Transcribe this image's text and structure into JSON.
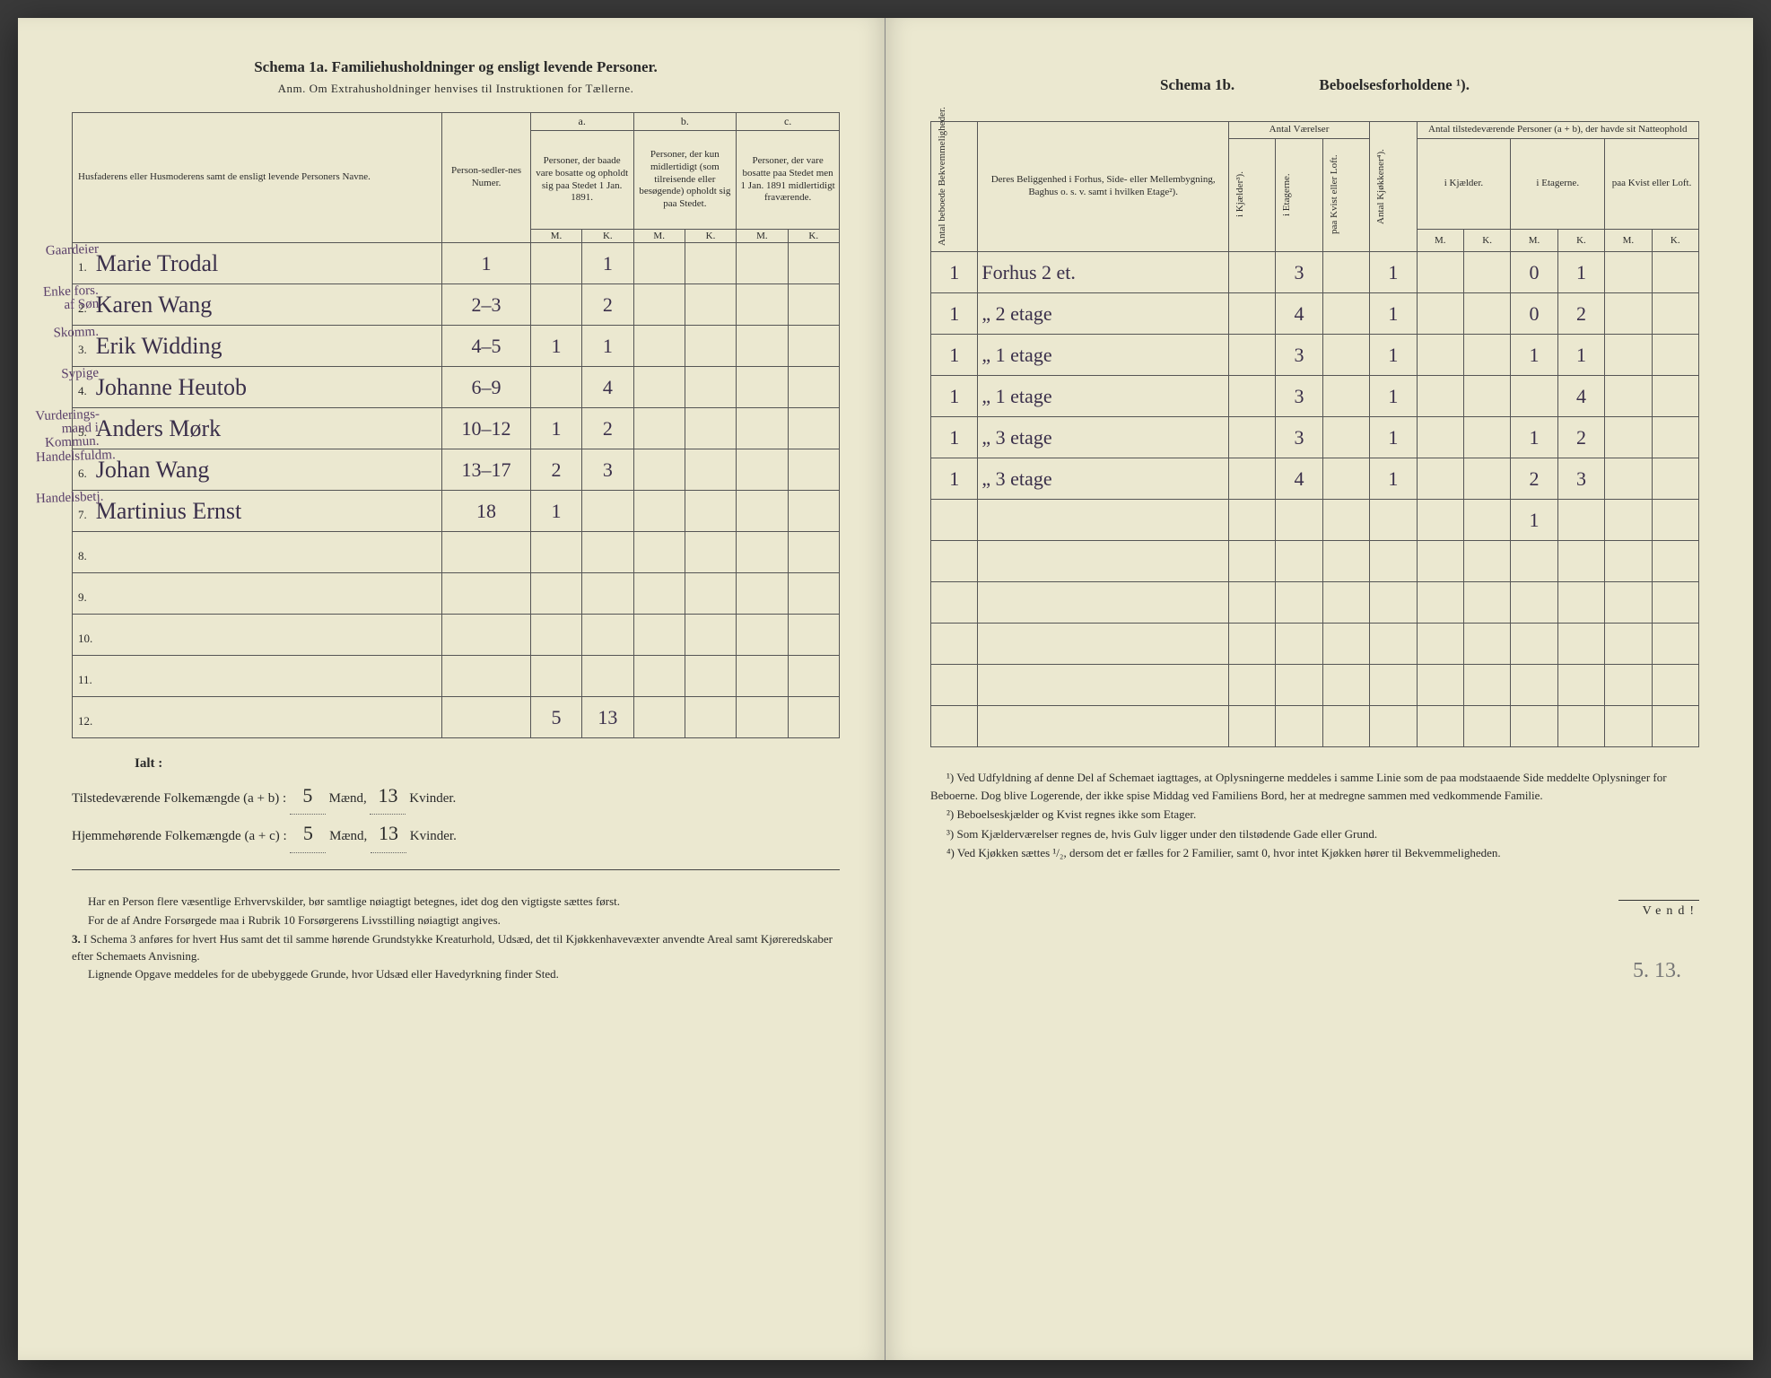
{
  "left": {
    "schema_title": "Schema 1a.  Familiehusholdninger og ensligt levende Personer.",
    "anm": "Anm.  Om Extrahusholdninger henvises til Instruktionen for Tællerne.",
    "headers": {
      "name": "Husfaderens eller Husmoderens samt de ensligt levende Personers Navne.",
      "person_num": "Person-sedler-nes Numer.",
      "a_label": "a.",
      "a_text": "Personer, der baade vare bosatte og opholdt sig paa Stedet 1 Jan. 1891.",
      "b_label": "b.",
      "b_text": "Personer, der kun midlertidigt (som tilreisende eller besøgende) opholdt sig paa Stedet.",
      "c_label": "c.",
      "c_text": "Personer, der vare bosatte paa Stedet men 1 Jan. 1891 midlertidigt fraværende.",
      "m": "M.",
      "k": "K."
    },
    "rows": [
      {
        "n": "1.",
        "margin": "Gaardeier",
        "name": "Marie Trodal",
        "num": "1",
        "aM": "",
        "aK": "1",
        "bM": "",
        "bK": ""
      },
      {
        "n": "2.",
        "margin": "Enke fors. af Søn",
        "name": "Karen Wang",
        "num": "2–3",
        "aM": "",
        "aK": "2",
        "bM": "",
        "bK": ""
      },
      {
        "n": "3.",
        "margin": "Skomm.",
        "name": "Erik Widding",
        "num": "4–5",
        "aM": "1",
        "aK": "1",
        "bM": "",
        "bK": ""
      },
      {
        "n": "4.",
        "margin": "Sypige",
        "name": "Johanne Heutob",
        "num": "6–9",
        "aM": "",
        "aK": "4",
        "bM": "",
        "bK": ""
      },
      {
        "n": "5.",
        "margin": "Vurderings-mand i Kommun.",
        "name": "Anders Mørk",
        "num": "10–12",
        "aM": "1",
        "aK": "2",
        "bM": "",
        "bK": ""
      },
      {
        "n": "6.",
        "margin": "Handelsfuldm.",
        "name": "Johan Wang",
        "num": "13–17",
        "aM": "2",
        "aK": "3",
        "bM": "",
        "bK": ""
      },
      {
        "n": "7.",
        "margin": "Handelsbetj.",
        "name": "Martinius Ernst",
        "num": "18",
        "aM": "1",
        "aK": "",
        "bM": "",
        "bK": ""
      },
      {
        "n": "8.",
        "margin": "",
        "name": "",
        "num": "",
        "aM": "",
        "aK": "",
        "bM": "",
        "bK": ""
      },
      {
        "n": "9.",
        "margin": "",
        "name": "",
        "num": "",
        "aM": "",
        "aK": "",
        "bM": "",
        "bK": ""
      },
      {
        "n": "10.",
        "margin": "",
        "name": "",
        "num": "",
        "aM": "",
        "aK": "",
        "bM": "",
        "bK": ""
      },
      {
        "n": "11.",
        "margin": "",
        "name": "",
        "num": "",
        "aM": "",
        "aK": "",
        "bM": "",
        "bK": ""
      },
      {
        "n": "12.",
        "margin": "",
        "name": "",
        "num": "",
        "aM": "5",
        "aK": "13",
        "bM": "",
        "bK": ""
      }
    ],
    "ialt": {
      "label": "Ialt :",
      "line1_a": "Tilstedeværende Folkemængde (a + b) :",
      "line1_m": "5",
      "line1_m_label": "Mænd,",
      "line1_k": "13",
      "line1_k_label": "Kvinder.",
      "line2_a": "Hjemmehørende Folkemængde (a + c) :",
      "line2_m": "5",
      "line2_m_label": "Mænd,",
      "line2_k": "13",
      "line2_k_label": "Kvinder."
    },
    "instructions": [
      "Har en Person flere væsentlige Erhvervskilder, bør samtlige nøiagtigt betegnes, idet dog den vigtigste sættes først.",
      "For de af Andre Forsørgede maa i Rubrik 10 Forsørgerens Livsstilling nøiagtigt angives.",
      "I Schema 3 anføres for hvert Hus samt det til samme hørende Grundstykke Kreaturhold, Udsæd, det til Kjøkkenhavevæxter anvendte Areal samt Kjøreredskaber efter Schemaets Anvisning.",
      "Lignende Opgave meddeles for de ubebyggede Grunde, hvor Udsæd eller Havedyrkning finder Sted."
    ],
    "item3_label": "3."
  },
  "right": {
    "schema_label": "Schema 1b.",
    "schema_title": "Beboelsesforholdene ¹).",
    "headers": {
      "antal_bekv": "Antal beboede Bekvemmeligheder.",
      "beliggenhed": "Deres Beliggenhed i Forhus, Side- eller Mellembygning, Baghus o. s. v. samt i hvilken Etage²).",
      "antal_vaer": "Antal Værelser",
      "kjokken": "Antal Kjøkkener⁴).",
      "tilstede": "Antal tilstedeværende Personer (a + b), der havde sit Natteophold",
      "kjael": "i Kjælder³).",
      "etag": "i Etagerne.",
      "kvist": "paa Kvist eller Loft.",
      "kjael2": "i Kjælder.",
      "etag2": "i Etagerne.",
      "kvist2": "paa Kvist eller Loft.",
      "m": "M.",
      "k": "K."
    },
    "rows": [
      {
        "bekv": "1",
        "loc": "Forhus 2 et.",
        "kj": "",
        "et": "3",
        "kv": "",
        "kjok": "1",
        "nKjM": "",
        "nKjK": "",
        "nEtM": "0",
        "nEtK": "1",
        "nKvM": "",
        "nKvK": ""
      },
      {
        "bekv": "1",
        "loc": "„   2 etage",
        "kj": "",
        "et": "4",
        "kv": "",
        "kjok": "1",
        "nKjM": "",
        "nKjK": "",
        "nEtM": "0",
        "nEtK": "2",
        "nKvM": "",
        "nKvK": ""
      },
      {
        "bekv": "1",
        "loc": "„   1 etage",
        "kj": "",
        "et": "3",
        "kv": "",
        "kjok": "1",
        "nKjM": "",
        "nKjK": "",
        "nEtM": "1",
        "nEtK": "1",
        "nKvM": "",
        "nKvK": ""
      },
      {
        "bekv": "1",
        "loc": "„   1 etage",
        "kj": "",
        "et": "3",
        "kv": "",
        "kjok": "1",
        "nKjM": "",
        "nKjK": "",
        "nEtM": "",
        "nEtK": "4",
        "nKvM": "",
        "nKvK": ""
      },
      {
        "bekv": "1",
        "loc": "„   3 etage",
        "kj": "",
        "et": "3",
        "kv": "",
        "kjok": "1",
        "nKjM": "",
        "nKjK": "",
        "nEtM": "1",
        "nEtK": "2",
        "nKvM": "",
        "nKvK": ""
      },
      {
        "bekv": "1",
        "loc": "„   3 etage",
        "kj": "",
        "et": "4",
        "kv": "",
        "kjok": "1",
        "nKjM": "",
        "nKjK": "",
        "nEtM": "2",
        "nEtK": "3",
        "nKvM": "",
        "nKvK": ""
      },
      {
        "bekv": "",
        "loc": "",
        "kj": "",
        "et": "",
        "kv": "",
        "kjok": "",
        "nKjM": "",
        "nKjK": "",
        "nEtM": "1",
        "nEtK": "",
        "nKvM": "",
        "nKvK": ""
      },
      {
        "bekv": "",
        "loc": "",
        "kj": "",
        "et": "",
        "kv": "",
        "kjok": "",
        "nKjM": "",
        "nKjK": "",
        "nEtM": "",
        "nEtK": "",
        "nKvM": "",
        "nKvK": ""
      },
      {
        "bekv": "",
        "loc": "",
        "kj": "",
        "et": "",
        "kv": "",
        "kjok": "",
        "nKjM": "",
        "nKjK": "",
        "nEtM": "",
        "nEtK": "",
        "nKvM": "",
        "nKvK": ""
      },
      {
        "bekv": "",
        "loc": "",
        "kj": "",
        "et": "",
        "kv": "",
        "kjok": "",
        "nKjM": "",
        "nKjK": "",
        "nEtM": "",
        "nEtK": "",
        "nKvM": "",
        "nKvK": ""
      },
      {
        "bekv": "",
        "loc": "",
        "kj": "",
        "et": "",
        "kv": "",
        "kjok": "",
        "nKjM": "",
        "nKjK": "",
        "nEtM": "",
        "nEtK": "",
        "nKvM": "",
        "nKvK": ""
      },
      {
        "bekv": "",
        "loc": "",
        "kj": "",
        "et": "",
        "kv": "",
        "kjok": "",
        "nKjM": "",
        "nKjK": "",
        "nEtM": "",
        "nEtK": "",
        "nKvM": "",
        "nKvK": ""
      }
    ],
    "pencil_sum": "5.  13.",
    "footnotes": [
      "¹) Ved Udfyldning af denne Del af Schemaet iagttages, at Oplysningerne meddeles i samme Linie som de paa modstaaende Side meddelte Oplysninger for Beboerne. Dog blive Logerende, der ikke spise Middag ved Familiens Bord, her at medregne sammen med vedkommende Familie.",
      "²) Beboelseskjælder og Kvist regnes ikke som Etager.",
      "³) Som Kjælderværelser regnes de, hvis Gulv ligger under den tilstødende Gade eller Grund.",
      "⁴) Ved Kjøkken sættes ¹/₂, dersom det er fælles for 2 Familier, samt 0, hvor intet Kjøkken hører til Bekvemmeligheden."
    ],
    "vend": "Vend!"
  }
}
